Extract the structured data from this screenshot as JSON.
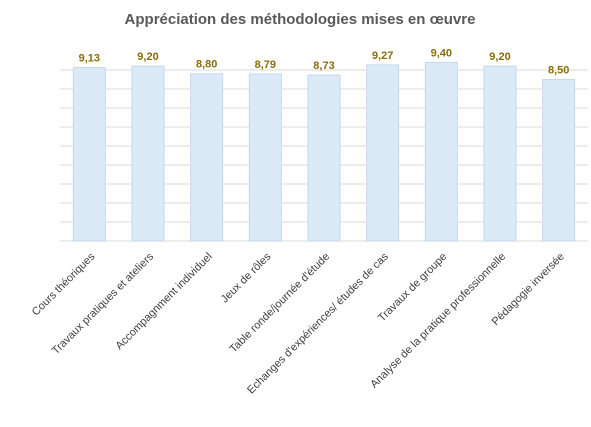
{
  "chart_data": {
    "type": "bar",
    "title": "Appréciation des méthodologies mises en œuvre",
    "categories": [
      "Cours théoriques",
      "Travaux pratiques et ateliers",
      "Accompagnment individuel",
      "Jeux de rôles",
      "Table ronde/journée d'étude",
      "Echanges d'expériences/ études de cas",
      "Travaux de groupe",
      "Analyse de la pratique professionnelle",
      "Pédagogie inversée"
    ],
    "values": [
      9.13,
      9.2,
      8.8,
      8.79,
      8.73,
      9.27,
      9.4,
      9.2,
      8.5
    ],
    "value_labels": [
      "9,13",
      "9,20",
      "8,80",
      "8,79",
      "8,73",
      "9,27",
      "9,40",
      "9,20",
      "8,50"
    ],
    "color": "#dce9f7",
    "ylim": [
      0,
      10
    ],
    "yticks": [
      0,
      1,
      2,
      3,
      4,
      5,
      6,
      7,
      8,
      9
    ],
    "grid": true
  }
}
